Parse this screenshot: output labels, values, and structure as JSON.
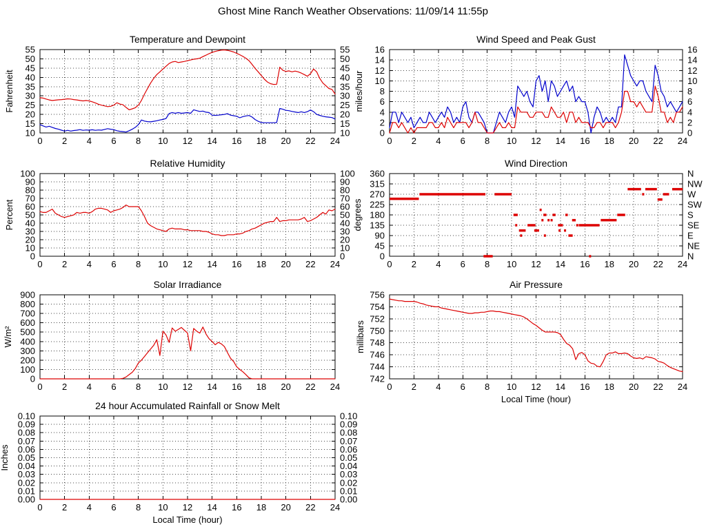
{
  "page_title": "Ghost Mine Ranch Weather Observations: 11/09/14 11:55p",
  "colors": {
    "line_red": "#dd0000",
    "line_blue": "#0000cc",
    "axis": "#000000",
    "grid": "#444444"
  },
  "chart_data": [
    {
      "id": "temperature-dewpoint",
      "type": "line",
      "title": "Temperature and Dewpoint",
      "ylabel": "Fahrenheit",
      "xlabel": "",
      "xlim": [
        0,
        24
      ],
      "xtick_step": 2,
      "ylim": [
        10,
        55
      ],
      "ytick_step": 5,
      "mirror_yticks": true,
      "grid": true,
      "series": [
        {
          "name": "Temperature",
          "color": "#dd0000",
          "x0": 0,
          "dx": 0.25,
          "values": [
            29,
            28.8,
            28.3,
            27.8,
            27.5,
            27.7,
            27.9,
            28,
            28.2,
            28.4,
            28.3,
            28,
            27.8,
            27.5,
            27.3,
            27.5,
            27.3,
            26.8,
            26.2,
            25.5,
            25,
            24.6,
            24.2,
            24.4,
            25,
            26.3,
            25.6,
            25.2,
            23.8,
            22.5,
            23,
            23.6,
            25,
            27.5,
            31,
            34,
            37,
            39.5,
            41.5,
            43,
            44.5,
            46,
            47.5,
            48.3,
            48.6,
            48,
            48.3,
            48.6,
            49,
            49.4,
            49.8,
            50,
            50.4,
            51.2,
            52,
            52.8,
            53.5,
            54,
            54.4,
            54.7,
            54.8,
            54.6,
            54.2,
            53.7,
            53,
            52.2,
            51.3,
            50.3,
            49,
            47,
            44.8,
            43,
            41,
            39,
            37.5,
            36.6,
            36.2,
            36.3,
            45.5,
            43.8,
            43.2,
            43.5,
            43,
            43.4,
            43,
            42.3,
            41.5,
            40.6,
            42,
            44.5,
            43,
            39.5,
            37,
            35.5,
            34,
            33.5,
            31
          ]
        },
        {
          "name": "Dewpoint",
          "color": "#0000cc",
          "x0": 0,
          "dx": 0.25,
          "values": [
            14.5,
            13.8,
            13.2,
            13.6,
            13,
            12.4,
            12,
            11.5,
            11,
            11.4,
            11,
            11.3,
            11.5,
            11.8,
            11.4,
            11.6,
            11.5,
            11.7,
            11.4,
            11.6,
            11.5,
            11.9,
            12.3,
            12,
            11.8,
            11.2,
            10.9,
            10.7,
            10.5,
            11.2,
            12,
            13,
            14.5,
            17,
            16.4,
            16.1,
            16,
            16.3,
            16.6,
            17,
            17.3,
            17.8,
            20.5,
            21,
            20.6,
            21,
            20.6,
            20.8,
            21,
            20.6,
            22.5,
            22,
            21.6,
            21.8,
            21.2,
            21,
            19.6,
            19.5,
            19.6,
            19.8,
            20,
            20.4,
            19.6,
            19.3,
            19,
            18.2,
            18.8,
            19.2,
            19.4,
            18.6,
            17.2,
            16.3,
            15.6,
            15.5,
            15.5,
            15.5,
            15.5,
            15.6,
            23.2,
            22.8,
            22.2,
            22,
            21.6,
            21.3,
            21,
            21.4,
            21,
            21.5,
            22.4,
            21.5,
            20,
            19.5,
            19,
            18.7,
            18.5,
            18.3,
            17.5
          ]
        }
      ]
    },
    {
      "id": "wind-speed",
      "type": "line",
      "title": "Wind Speed and Peak Gust",
      "ylabel": "miles/hour",
      "xlabel": "",
      "xlim": [
        0,
        24
      ],
      "xtick_step": 2,
      "ylim": [
        0,
        16
      ],
      "ytick_step": 2,
      "mirror_yticks": true,
      "grid": true,
      "series": [
        {
          "name": "Peak Gust",
          "color": "#0000cc",
          "x0": 0,
          "dx": 0.25,
          "values": [
            1,
            4,
            4,
            2,
            4,
            3,
            2,
            3,
            1,
            2,
            3,
            2,
            2,
            4,
            3,
            2,
            3,
            4,
            3,
            5,
            4,
            2,
            3,
            2,
            5,
            6,
            3,
            2,
            4,
            4,
            3,
            2,
            0,
            0,
            0,
            2,
            4,
            3,
            2,
            4,
            5,
            3,
            9,
            8,
            7,
            8,
            6,
            5,
            10,
            11,
            8,
            10,
            6,
            10,
            9,
            7,
            8,
            9,
            10,
            8,
            9,
            6,
            7,
            6,
            6,
            4,
            0,
            3,
            5,
            4,
            2,
            3,
            2,
            3,
            2,
            5,
            5,
            15,
            13,
            11,
            10,
            9,
            10,
            10,
            8,
            7,
            6,
            13,
            11,
            8,
            7,
            5,
            6,
            5,
            4,
            5,
            6
          ]
        },
        {
          "name": "Wind Speed",
          "color": "#dd0000",
          "x0": 0,
          "dx": 0.25,
          "values": [
            0,
            2,
            2,
            1,
            2,
            1,
            0,
            1,
            0,
            1,
            1,
            1,
            1,
            2,
            2,
            1,
            1,
            2,
            1,
            3,
            2,
            1,
            2,
            2,
            2,
            2,
            1,
            2,
            4,
            2,
            2,
            1,
            0,
            0,
            0,
            1,
            2,
            1,
            1,
            2,
            1,
            1,
            5,
            4,
            4,
            4,
            3,
            3,
            4,
            4,
            4,
            3,
            3,
            5,
            4,
            3,
            3,
            4,
            2,
            4,
            4,
            2,
            3,
            2,
            2,
            2,
            1,
            1,
            2,
            2,
            1,
            2,
            2,
            2,
            1,
            2,
            4,
            8,
            8,
            6,
            6,
            5,
            6,
            5,
            4,
            4,
            4,
            9,
            7,
            4,
            4,
            2,
            3,
            2,
            4,
            4,
            5
          ]
        }
      ]
    },
    {
      "id": "relative-humidity",
      "type": "line",
      "title": "Relative Humidity",
      "ylabel": "Percent",
      "xlabel": "",
      "xlim": [
        0,
        24
      ],
      "xtick_step": 2,
      "ylim": [
        0,
        100
      ],
      "ytick_step": 10,
      "mirror_yticks": true,
      "grid": true,
      "series": [
        {
          "name": "Relative Humidity",
          "color": "#dd0000",
          "x0": 0,
          "dx": 0.25,
          "values": [
            54,
            53,
            53,
            55,
            57,
            52,
            50,
            48,
            47,
            48,
            49,
            50,
            53,
            52,
            53,
            53,
            52,
            54,
            57,
            58,
            58,
            57,
            56,
            53,
            55,
            56,
            57,
            59,
            62,
            60,
            60,
            60,
            60,
            55,
            48,
            40,
            37,
            35,
            33,
            32,
            31,
            30,
            33,
            34,
            33,
            33,
            33,
            32,
            32,
            31,
            31,
            31,
            31,
            30,
            30,
            29,
            27,
            26,
            26,
            25,
            25,
            26,
            26,
            26,
            27,
            27,
            28,
            30,
            31,
            33,
            34,
            36,
            38,
            40,
            41,
            42,
            42,
            47,
            42,
            43,
            43,
            44,
            44,
            44,
            44,
            45,
            47,
            42,
            43,
            45,
            47,
            50,
            53,
            51,
            56,
            55,
            57
          ]
        }
      ]
    },
    {
      "id": "wind-direction",
      "type": "segments",
      "title": "Wind Direction",
      "ylabel": "degrees",
      "xlabel": "",
      "xlim": [
        0,
        24
      ],
      "xtick_step": 2,
      "ylim": [
        0,
        360
      ],
      "ytick_step": 45,
      "mirror_yticks": false,
      "right_tick_labels": [
        "N",
        "NE",
        "E",
        "SE",
        "S",
        "SW",
        "W",
        "NW",
        "N"
      ],
      "grid": true,
      "segment_color": "#dd0000",
      "segments": [
        [
          0.0,
          2.4,
          250
        ],
        [
          2.45,
          7.85,
          270
        ],
        [
          7.7,
          8.45,
          0
        ],
        [
          8.6,
          10.0,
          270
        ],
        [
          10.15,
          10.5,
          180
        ],
        [
          10.3,
          10.45,
          135
        ],
        [
          10.6,
          11.15,
          112
        ],
        [
          10.75,
          10.8,
          90
        ],
        [
          11.3,
          11.95,
          135
        ],
        [
          11.85,
          12.25,
          112
        ],
        [
          12.35,
          12.4,
          202
        ],
        [
          12.5,
          12.55,
          157
        ],
        [
          12.6,
          12.85,
          180
        ],
        [
          12.7,
          12.75,
          90
        ],
        [
          13.0,
          13.05,
          157
        ],
        [
          13.25,
          13.3,
          157
        ],
        [
          13.35,
          13.6,
          180
        ],
        [
          13.8,
          14.2,
          135
        ],
        [
          13.9,
          13.95,
          112
        ],
        [
          14.35,
          14.4,
          112
        ],
        [
          14.4,
          14.6,
          180
        ],
        [
          14.65,
          15.0,
          90
        ],
        [
          14.95,
          15.25,
          157
        ],
        [
          15.35,
          15.4,
          135
        ],
        [
          15.5,
          17.2,
          135
        ],
        [
          16.4,
          16.45,
          0
        ],
        [
          17.3,
          18.6,
          157
        ],
        [
          18.65,
          19.3,
          180
        ],
        [
          19.5,
          20.6,
          292
        ],
        [
          20.7,
          20.85,
          270
        ],
        [
          20.95,
          21.9,
          292
        ],
        [
          21.95,
          22.35,
          247
        ],
        [
          22.4,
          22.9,
          270
        ],
        [
          23.15,
          24.0,
          292
        ]
      ]
    },
    {
      "id": "solar-irradiance",
      "type": "line",
      "title": "Solar Irradiance",
      "ylabel": "W/m²",
      "xlabel": "",
      "xlim": [
        0,
        24
      ],
      "xtick_step": 2,
      "ylim": [
        0,
        900
      ],
      "ytick_step": 100,
      "mirror_yticks": false,
      "grid": true,
      "series": [
        {
          "name": "Solar Irradiance",
          "color": "#dd0000",
          "x0": 0,
          "dx": 0.25,
          "values": [
            0,
            0,
            0,
            0,
            0,
            0,
            0,
            0,
            0,
            0,
            0,
            0,
            0,
            0,
            0,
            0,
            0,
            0,
            0,
            0,
            0,
            0,
            0,
            0,
            0,
            0,
            0,
            5,
            20,
            45,
            70,
            110,
            170,
            200,
            240,
            280,
            320,
            360,
            420,
            250,
            510,
            470,
            390,
            545,
            510,
            530,
            550,
            520,
            490,
            300,
            540,
            510,
            490,
            555,
            480,
            430,
            400,
            365,
            390,
            375,
            345,
            280,
            220,
            185,
            130,
            100,
            75,
            45,
            10,
            0,
            0,
            0,
            0,
            0,
            0,
            0,
            0,
            0,
            0,
            0,
            0,
            0,
            0,
            0,
            0,
            0,
            0,
            0,
            0,
            0,
            0,
            0,
            0,
            0,
            0,
            0,
            0
          ]
        }
      ]
    },
    {
      "id": "air-pressure",
      "type": "line",
      "title": "Air Pressure",
      "ylabel": "millibars",
      "xlabel": "Local Time (hour)",
      "xlim": [
        0,
        24
      ],
      "xtick_step": 2,
      "ylim": [
        742,
        756
      ],
      "ytick_step": 2,
      "mirror_yticks": false,
      "grid": true,
      "series": [
        {
          "name": "Air Pressure",
          "color": "#dd0000",
          "x0": 0,
          "dx": 0.25,
          "values": [
            755.3,
            755.2,
            755.1,
            755,
            755,
            754.9,
            754.9,
            754.9,
            754.9,
            754.8,
            754.6,
            754.5,
            754.3,
            754.2,
            754.1,
            754,
            754,
            753.8,
            753.7,
            753.6,
            753.5,
            753.4,
            753.3,
            753.2,
            753.1,
            753,
            752.9,
            752.9,
            753,
            753,
            753.1,
            753.1,
            753.2,
            753.3,
            753.3,
            753.2,
            753.2,
            753.1,
            753,
            752.9,
            752.8,
            752.7,
            752.6,
            752.5,
            752.3,
            752,
            751.6,
            751.2,
            750.9,
            750.5,
            750.1,
            749.8,
            749.8,
            749.8,
            749.8,
            749.7,
            749.4,
            748.6,
            747.9,
            747.6,
            747,
            745.2,
            746.2,
            746.4,
            746,
            745,
            744.6,
            744.5,
            744.1,
            744,
            744.9,
            746,
            746.3,
            746.3,
            746.5,
            746.2,
            746.2,
            746.3,
            746.2,
            745.8,
            745.5,
            745.4,
            745.5,
            745.3,
            745.7,
            745.6,
            745.5,
            745.3,
            744.9,
            744.8,
            744.6,
            744.2,
            743.9,
            743.7,
            743.5,
            743.3,
            743.2
          ]
        }
      ]
    },
    {
      "id": "rainfall",
      "type": "line",
      "title": "24 hour Accumulated Rainfall or Snow Melt",
      "ylabel": "Inches",
      "xlabel": "Local Time (hour)",
      "xlim": [
        0,
        24
      ],
      "xtick_step": 2,
      "ylim": [
        0,
        0.1
      ],
      "ytick_step": 0.01,
      "ytick_decimals": 2,
      "mirror_yticks": true,
      "grid": true,
      "series": [
        {
          "name": "Rainfall",
          "color": "#dd0000",
          "x0": 0,
          "dx": 24,
          "values": [
            0,
            0
          ]
        }
      ]
    }
  ]
}
